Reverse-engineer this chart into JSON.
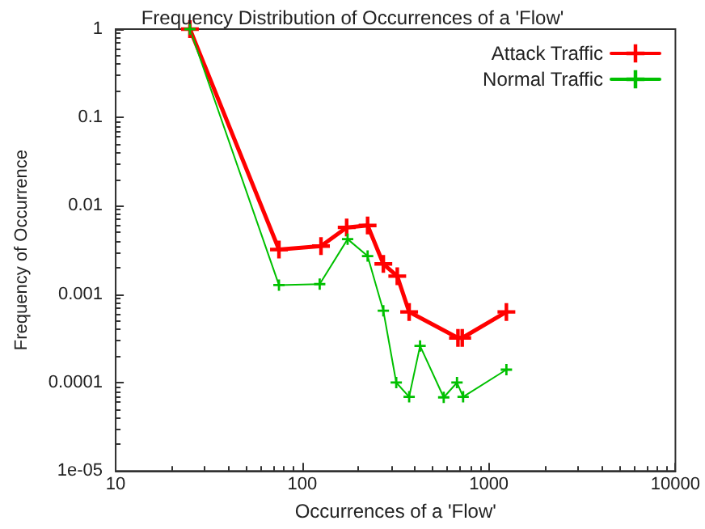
{
  "chart_data": {
    "type": "line",
    "title": "Frequency Distribution of Occurrences of a 'Flow'",
    "xlabel": "Occurrences of a 'Flow'",
    "ylabel": "Frequency of Occurrence",
    "log": "xy",
    "xlim": [
      10,
      10000
    ],
    "xticks": [
      10,
      100,
      1000,
      10000
    ],
    "ylim": [
      1e-05,
      1
    ],
    "yticks": [
      {
        "value": 1e-05,
        "label": "1e-05"
      },
      0.0001,
      0.001,
      0.01,
      0.1,
      1
    ],
    "grid": false,
    "legend": "top right",
    "marker": "cross",
    "line_style": "solid",
    "series": [
      {
        "name": "Attack Traffic",
        "color": "#ff0000",
        "x": [
          25,
          75,
          126,
          173,
          224,
          272,
          323,
          374,
          683,
          720,
          1242
        ],
        "values": [
          1,
          0.0032,
          0.0035,
          0.0057,
          0.006,
          0.0022,
          0.0016,
          0.00063,
          0.00032,
          0.00032,
          0.00063
        ]
      },
      {
        "name": "Normal Traffic",
        "color": "#00c000",
        "x": [
          25,
          75,
          124,
          175,
          224,
          272,
          319,
          374,
          428,
          573,
          675,
          728,
          1242
        ],
        "values": [
          1,
          0.00127,
          0.0013,
          0.0042,
          0.0027,
          0.00065,
          0.0001,
          6.9e-05,
          0.00026,
          6.8e-05,
          0.0001,
          6.9e-05,
          0.00014
        ]
      }
    ]
  }
}
